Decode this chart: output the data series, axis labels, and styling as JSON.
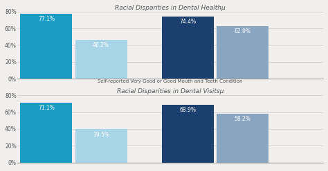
{
  "chart1": {
    "title": "Racial Disparities in Dental Healthµ",
    "title_display": "Racial Disparities in Dental Healthµ",
    "values": [
      77.1,
      46.2,
      74.4,
      62.9
    ],
    "labels": [
      "77.1%",
      "46.2%",
      "74.4%",
      "62.9%"
    ],
    "colors": [
      "#1b9cc4",
      "#a8d4e8",
      "#1b3f6e",
      "#8aa5bf"
    ],
    "xlabel": "Self-reported Very Good or Good Mouth and Teeth Condition",
    "ylim": [
      0,
      80
    ],
    "yticks": [
      0,
      20,
      40,
      60,
      80
    ],
    "ytick_labels": [
      "0%",
      "20%",
      "40%",
      "60%",
      "80%"
    ]
  },
  "chart2": {
    "title": "Racial Disparities in Dental Visitsµ",
    "values": [
      71.1,
      39.5,
      68.9,
      58.2
    ],
    "labels": [
      "71.1%",
      "39.5%",
      "68.9%",
      "58.2%"
    ],
    "colors": [
      "#1b9cc4",
      "#a8d4e8",
      "#1b3f6e",
      "#8aa5bf"
    ],
    "xlabel": "",
    "ylim": [
      0,
      80
    ],
    "yticks": [
      0,
      20,
      40,
      60,
      80
    ],
    "ytick_labels": [
      "0%",
      "20%",
      "40%",
      "60%",
      "80%"
    ]
  },
  "background_color": "#f0efee",
  "text_color": "#555555",
  "title_fontsize": 6.5,
  "label_fontsize": 5.5,
  "tick_fontsize": 5.5,
  "xlabel_fontsize": 5.0
}
